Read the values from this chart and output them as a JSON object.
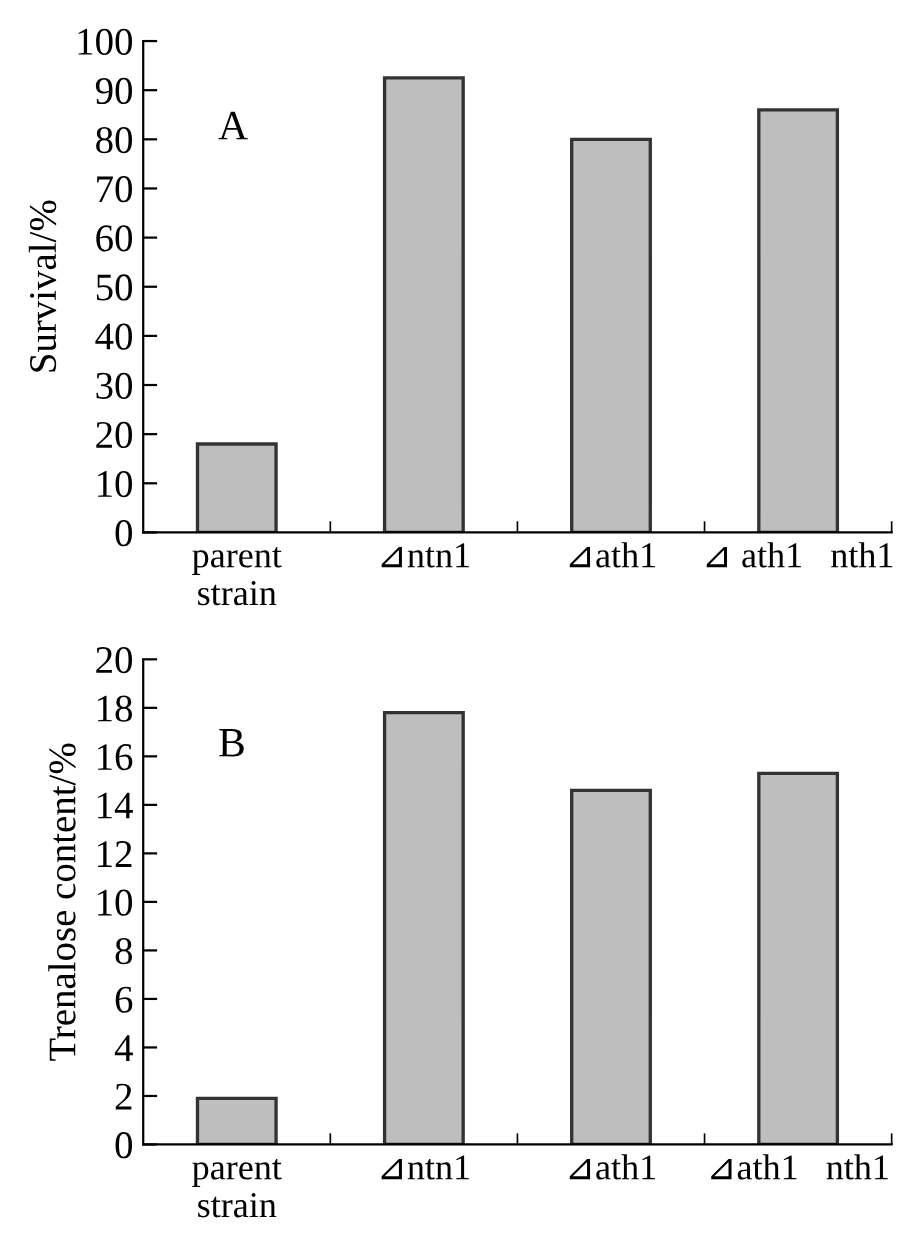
{
  "chart_data": [
    {
      "type": "bar",
      "ylabel": "Survival/%",
      "annotations": [
        "A"
      ],
      "categories": [
        "parent\nstrain",
        "⊿ntn1",
        "⊿ath1",
        "⊿ ath1   nth1"
      ],
      "values": [
        18,
        92.5,
        80,
        86
      ],
      "color": "#bebebe",
      "ylim": [
        0,
        100
      ],
      "yticks": [
        0,
        10,
        20,
        30,
        40,
        50,
        60,
        70,
        80,
        90,
        100
      ],
      "grid": false
    },
    {
      "type": "bar",
      "ylabel": "Trenalose content/%",
      "annotations": [
        "B"
      ],
      "categories": [
        "parent\nstrain",
        "⊿ntn1",
        "⊿ath1",
        "⊿ath1   nth1"
      ],
      "values": [
        1.9,
        17.8,
        14.6,
        15.3
      ],
      "color": "#bebebe",
      "ylim": [
        0,
        20
      ],
      "yticks": [
        0,
        2,
        4,
        6,
        8,
        10,
        12,
        14,
        16,
        18,
        20
      ],
      "grid": false
    }
  ]
}
